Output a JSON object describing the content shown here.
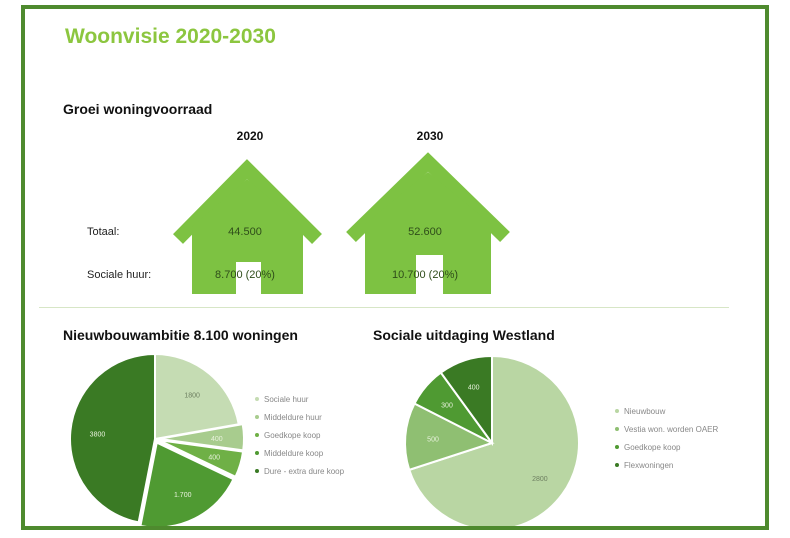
{
  "title": "Woonvisie 2020-2030",
  "colors": {
    "accent": "#8cc63f",
    "frame": "#4e8a2e",
    "house": "#7dc242"
  },
  "groei": {
    "heading": "Groei woningvoorraad",
    "row_labels": {
      "totaal": "Totaal:",
      "sociale": "Sociale huur:"
    },
    "houses": [
      {
        "year": "2020",
        "totaal": "44.500",
        "sociale": "8.700 (20%)"
      },
      {
        "year": "2030",
        "totaal": "52.600",
        "sociale": "10.700 (20%)"
      }
    ]
  },
  "chart_data": [
    {
      "type": "pie",
      "title": "Nieuwbouwambitie 8.100 woningen",
      "legend_position": "right",
      "slices": [
        {
          "label": "Sociale huur",
          "value": 1800,
          "display": "1800",
          "color": "#c5dcb3"
        },
        {
          "label": "Middeldure huur",
          "value": 400,
          "display": "400",
          "color": "#a8cc8e"
        },
        {
          "label": "Goedkope koop",
          "value": 400,
          "display": "400",
          "color": "#6fb046"
        },
        {
          "label": "Middeldure koop",
          "value": 1700,
          "display": "1.700",
          "color": "#4f9a32"
        },
        {
          "label": "Dure - extra dure koop",
          "value": 3800,
          "display": "3800",
          "color": "#3a7a24"
        }
      ]
    },
    {
      "type": "pie",
      "title": "Sociale uitdaging Westland",
      "legend_position": "right",
      "slices": [
        {
          "label": "Nieuwbouw",
          "value": 2800,
          "display": "2800",
          "color": "#b9d6a3"
        },
        {
          "label": "Vestia won. worden OAER",
          "value": 500,
          "display": "500",
          "color": "#8fbf72"
        },
        {
          "label": "Goedkope koop",
          "value": 300,
          "display": "300",
          "color": "#4f9a32"
        },
        {
          "label": "Flexwoningen",
          "value": 400,
          "display": "400",
          "color": "#3a7a24"
        }
      ]
    }
  ]
}
